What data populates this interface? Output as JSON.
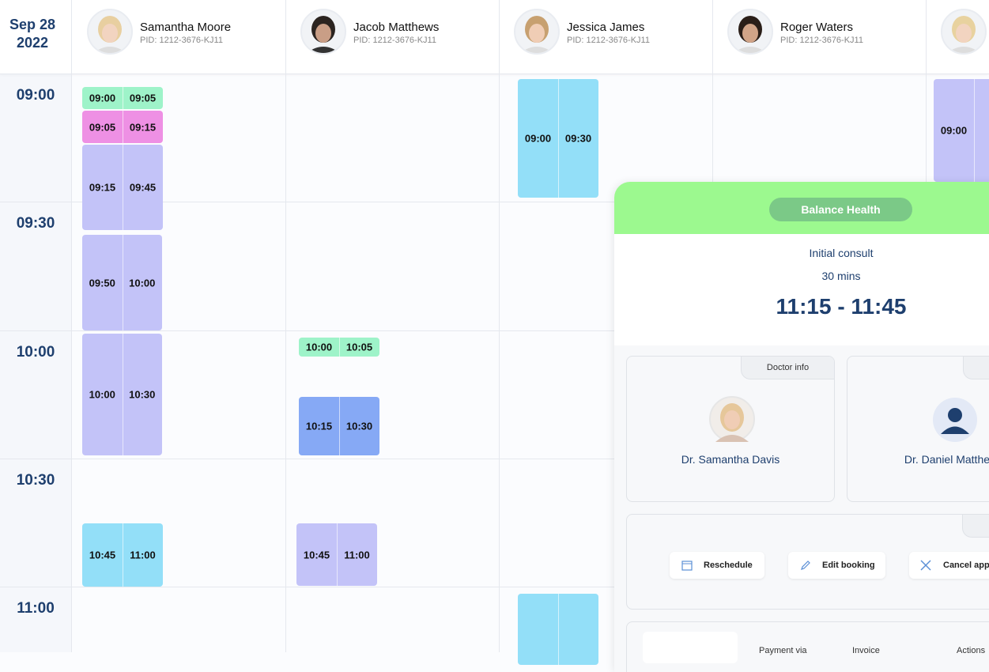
{
  "date": {
    "month_day": "Sep 28",
    "year": "2022"
  },
  "time_slots": [
    "09:00",
    "09:30",
    "10:00",
    "10:30",
    "11:00"
  ],
  "patients": [
    {
      "name": "Samantha Moore",
      "pid": "PID: 1212-3676-KJ11",
      "appointments": [
        {
          "start": "09:00",
          "end": "09:05",
          "color": "#9ef3c9"
        },
        {
          "start": "09:05",
          "end": "09:15",
          "color": "#ee90e4"
        },
        {
          "start": "09:15",
          "end": "09:45",
          "color": "#c3c3f8"
        },
        {
          "start": "09:50",
          "end": "10:00",
          "color": "#c3c3f8"
        },
        {
          "start": "10:00",
          "end": "10:30",
          "color": "#c3c3f8"
        },
        {
          "start": "10:45",
          "end": "11:00",
          "color": "#93dff8"
        }
      ]
    },
    {
      "name": "Jacob Matthews",
      "pid": "PID: 1212-3676-KJ11",
      "appointments": [
        {
          "start": "10:00",
          "end": "10:05",
          "color": "#9ef3c9"
        },
        {
          "start": "10:15",
          "end": "10:30",
          "color": "#86a9f5"
        },
        {
          "start": "10:45",
          "end": "11:00",
          "color": "#c3c3f8"
        }
      ]
    },
    {
      "name": "Jessica James",
      "pid": "PID: 1212-3676-KJ11",
      "appointments": [
        {
          "start": "09:00",
          "end": "09:30",
          "color": "#93dff8"
        }
      ]
    },
    {
      "name": "Roger Waters",
      "pid": "PID: 1212-3676-KJ11",
      "appointments": []
    },
    {
      "appointments": [
        {
          "start": "09:00",
          "color": "#c3c3f8"
        }
      ]
    }
  ],
  "popup": {
    "clinic": "Balance Health",
    "appointment_type": "Initial consult",
    "duration": "30 mins",
    "time_range": "11:15 - 11:45",
    "doctor_tab": "Doctor info",
    "doctors": [
      "Dr. Samantha Davis",
      "Dr. Daniel Matthew"
    ],
    "actions": [
      "Reschedule",
      "Edit booking",
      "Cancel app"
    ],
    "table_headers": [
      "Payment via",
      "Invoice",
      "Actions"
    ]
  }
}
